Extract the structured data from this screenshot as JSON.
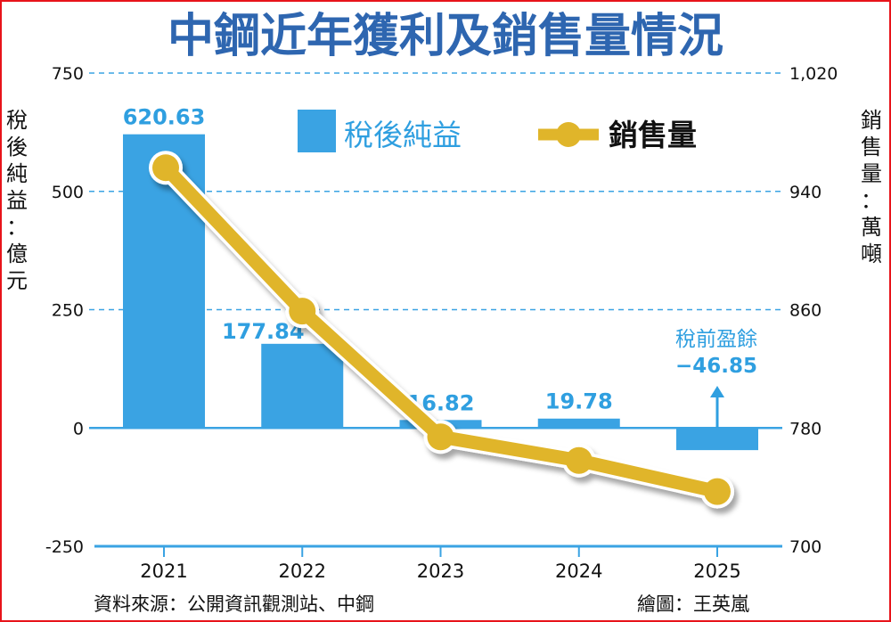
{
  "chart_data": {
    "type": "bar+line",
    "title": "中鋼近年獲利及銷售量情況",
    "categories": [
      "2021",
      "2022",
      "2023",
      "2024",
      "2025"
    ],
    "series": [
      {
        "name": "稅後純益",
        "type": "bar",
        "axis": "left",
        "values": [
          620.63,
          177.84,
          16.82,
          19.78,
          -46.85
        ],
        "labels": [
          "620.63",
          "177.84",
          "16.82",
          "19.78",
          ""
        ],
        "color": "#3aa3e3"
      },
      {
        "name": "銷售量",
        "type": "line",
        "axis": "right",
        "values": [
          956,
          859,
          774,
          758,
          737
        ],
        "color": "#e0b52a"
      }
    ],
    "left_axis": {
      "label": "稅後純益：億元",
      "ylim": [
        -250,
        750
      ],
      "ticks": [
        750,
        500,
        250,
        0,
        -250
      ],
      "tick_labels": [
        "750",
        "500",
        "250",
        "0",
        "-250"
      ]
    },
    "right_axis": {
      "label": "銷售量：萬噸",
      "ylim": [
        700,
        1020
      ],
      "ticks": [
        1020,
        940,
        860,
        780,
        700
      ],
      "tick_labels": [
        "1,020",
        "940",
        "860",
        "780",
        "700"
      ]
    },
    "legend": {
      "placement": "top-center",
      "entries": [
        "稅後純益",
        "銷售量"
      ]
    },
    "annotation": {
      "category": "2025",
      "title": "稅前盈餘",
      "value": "−46.85"
    },
    "grid": "dashed horizontal",
    "source": "資料來源：公開資訊觀測站、中鋼",
    "credit": "繪圖：王英嵐"
  },
  "colors": {
    "frame": "#e8141b",
    "title": "#2e66b0",
    "bar": "#3aa3e3",
    "line": "#e0b52a",
    "grid": "#3aa3e3"
  }
}
